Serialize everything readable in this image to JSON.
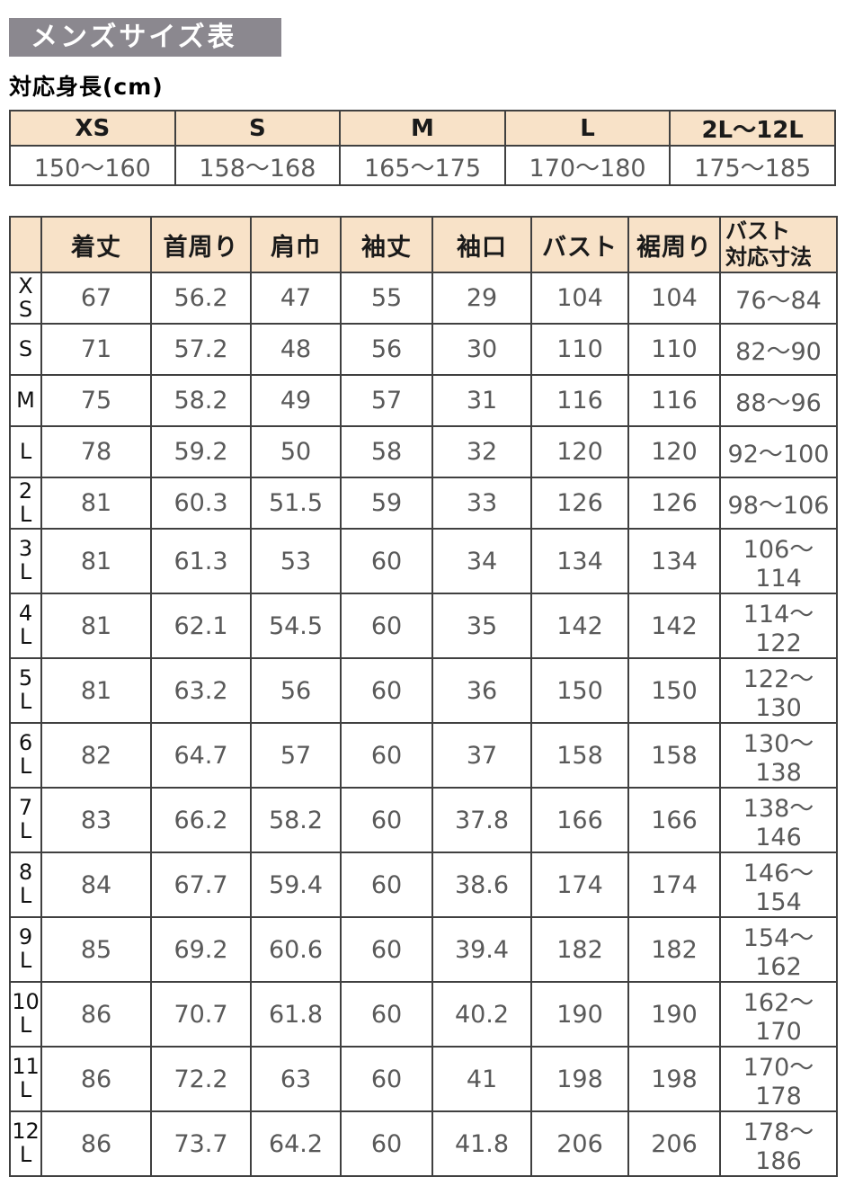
{
  "header": {
    "title": "メンズサイズ表",
    "height_label": "対応身長(cm)"
  },
  "colors": {
    "title_bar_bg": "#8b888f",
    "title_text": "#ffffff",
    "table_header_bg": "#f8e2c8",
    "border": "#404040",
    "value_text": "#595959"
  },
  "height_table": {
    "columns": [
      "XS",
      "S",
      "M",
      "L",
      "2L〜12L"
    ],
    "values": [
      "150〜160",
      "158〜168",
      "165〜175",
      "170〜180",
      "175〜185"
    ]
  },
  "size_table": {
    "columns": [
      "着丈",
      "首周り",
      "肩巾",
      "袖丈",
      "袖口",
      "バスト",
      "裾周り",
      "バスト\n対応寸法"
    ],
    "rows": [
      {
        "size": "XS",
        "values": [
          "67",
          "56.2",
          "47",
          "55",
          "29",
          "104",
          "104",
          "76〜84"
        ]
      },
      {
        "size": "S",
        "values": [
          "71",
          "57.2",
          "48",
          "56",
          "30",
          "110",
          "110",
          "82〜90"
        ]
      },
      {
        "size": "M",
        "values": [
          "75",
          "58.2",
          "49",
          "57",
          "31",
          "116",
          "116",
          "88〜96"
        ]
      },
      {
        "size": "L",
        "values": [
          "78",
          "59.2",
          "50",
          "58",
          "32",
          "120",
          "120",
          "92〜100"
        ]
      },
      {
        "size": "2L",
        "values": [
          "81",
          "60.3",
          "51.5",
          "59",
          "33",
          "126",
          "126",
          "98〜106"
        ]
      },
      {
        "size": "3L",
        "values": [
          "81",
          "61.3",
          "53",
          "60",
          "34",
          "134",
          "134",
          "106〜114"
        ]
      },
      {
        "size": "4L",
        "values": [
          "81",
          "62.1",
          "54.5",
          "60",
          "35",
          "142",
          "142",
          "114〜122"
        ]
      },
      {
        "size": "5L",
        "values": [
          "81",
          "63.2",
          "56",
          "60",
          "36",
          "150",
          "150",
          "122〜130"
        ]
      },
      {
        "size": "6L",
        "values": [
          "82",
          "64.7",
          "57",
          "60",
          "37",
          "158",
          "158",
          "130〜138"
        ]
      },
      {
        "size": "7L",
        "values": [
          "83",
          "66.2",
          "58.2",
          "60",
          "37.8",
          "166",
          "166",
          "138〜146"
        ]
      },
      {
        "size": "8L",
        "values": [
          "84",
          "67.7",
          "59.4",
          "60",
          "38.6",
          "174",
          "174",
          "146〜154"
        ]
      },
      {
        "size": "9L",
        "values": [
          "85",
          "69.2",
          "60.6",
          "60",
          "39.4",
          "182",
          "182",
          "154〜162"
        ]
      },
      {
        "size": "10L",
        "values": [
          "86",
          "70.7",
          "61.8",
          "60",
          "40.2",
          "190",
          "190",
          "162〜170"
        ]
      },
      {
        "size": "11L",
        "values": [
          "86",
          "72.2",
          "63",
          "60",
          "41",
          "198",
          "198",
          "170〜178"
        ]
      },
      {
        "size": "12L",
        "values": [
          "86",
          "73.7",
          "64.2",
          "60",
          "41.8",
          "206",
          "206",
          "178〜186"
        ]
      }
    ]
  }
}
